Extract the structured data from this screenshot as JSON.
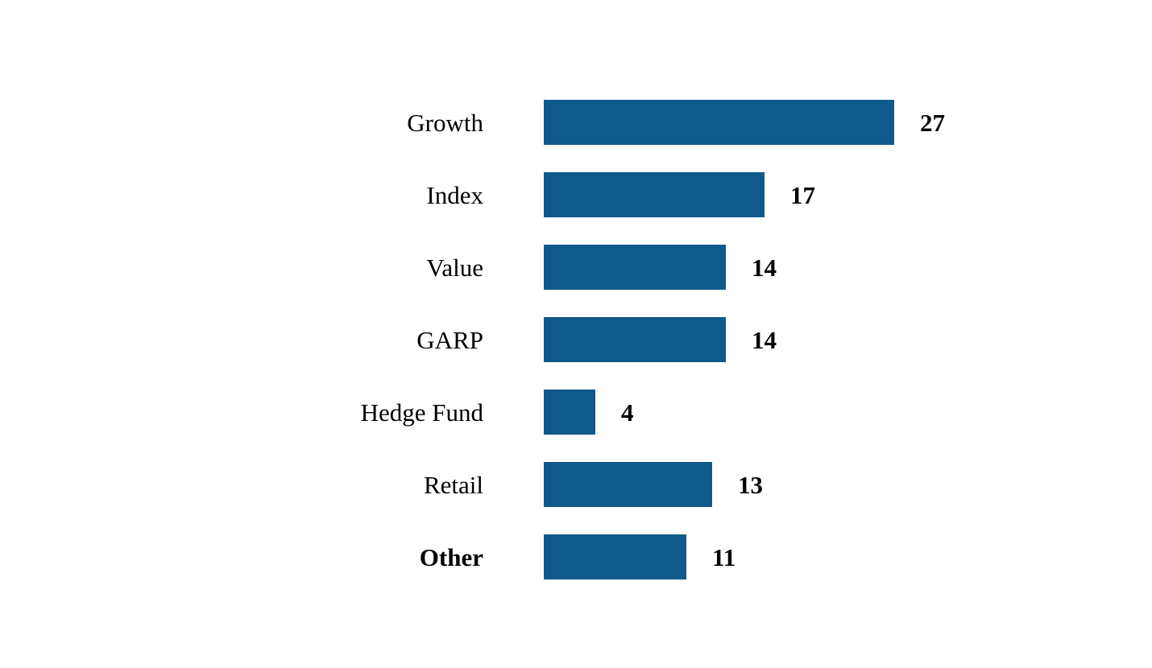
{
  "chart_data": {
    "type": "bar",
    "orientation": "horizontal",
    "title": "",
    "xlabel": "",
    "ylabel": "",
    "xlim": [
      0,
      27
    ],
    "grid": false,
    "bar_color": "#10598B",
    "value_label_color": "#000000",
    "categories": [
      "Growth",
      "Index",
      "Value",
      "GARP",
      "Hedge Fund",
      "Retail",
      "Other"
    ],
    "values": [
      27,
      17,
      14,
      14,
      4,
      13,
      11
    ],
    "bold_category_labels": [
      false,
      false,
      false,
      false,
      false,
      false,
      true
    ],
    "value_labels": [
      "27",
      "17",
      "14",
      "14",
      "4",
      "13",
      "11"
    ]
  }
}
